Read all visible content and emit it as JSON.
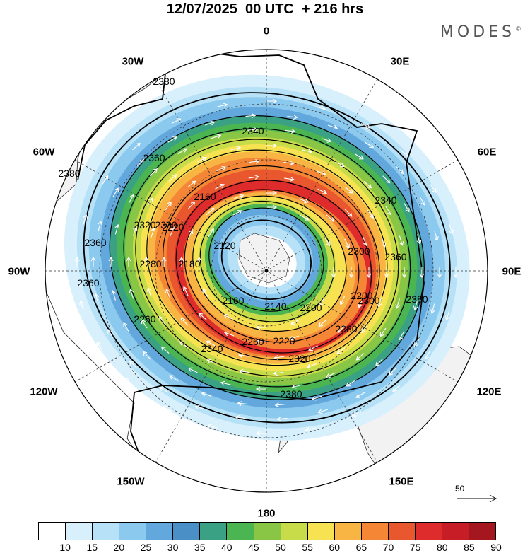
{
  "title": "12/07/2025  00 UTC  + 216 hrs",
  "logo": "MODES",
  "logo_mark": "©",
  "longitude_labels": {
    "lon_0": "0",
    "lon_30e": "30E",
    "lon_60e": "60E",
    "lon_90e": "90E",
    "lon_120e": "120E",
    "lon_150e": "150E",
    "lon_180": "180",
    "lon_150w": "150W",
    "lon_120w": "120W",
    "lon_90w": "90W",
    "lon_60w": "60W",
    "lon_30w": "30W"
  },
  "contour_labels": [
    "2380",
    "2380",
    "2340",
    "2360",
    "2360",
    "2320",
    "2360",
    "2280",
    "2300",
    "2260",
    "2220",
    "2180",
    "2160",
    "2120",
    "2160",
    "2140",
    "2200",
    "2220",
    "2260",
    "2280",
    "2300",
    "2320",
    "2340",
    "2300",
    "2200",
    "2340",
    "2360",
    "2380",
    "2380"
  ],
  "reference_vector": {
    "value": "50"
  },
  "colorbar": {
    "colors": [
      "#ffffff",
      "#d8f0fc",
      "#b6e1f7",
      "#8cc9ee",
      "#62a8dc",
      "#4a8fc6",
      "#3aa184",
      "#4bb551",
      "#8ac646",
      "#c8dc4a",
      "#f7e251",
      "#f9b544",
      "#f48635",
      "#e8572d",
      "#dd2c2b",
      "#c61d27",
      "#a5171f"
    ],
    "ticks": [
      "10",
      "15",
      "20",
      "25",
      "30",
      "35",
      "40",
      "45",
      "50",
      "55",
      "60",
      "65",
      "70",
      "75",
      "80",
      "85",
      "90"
    ]
  }
}
